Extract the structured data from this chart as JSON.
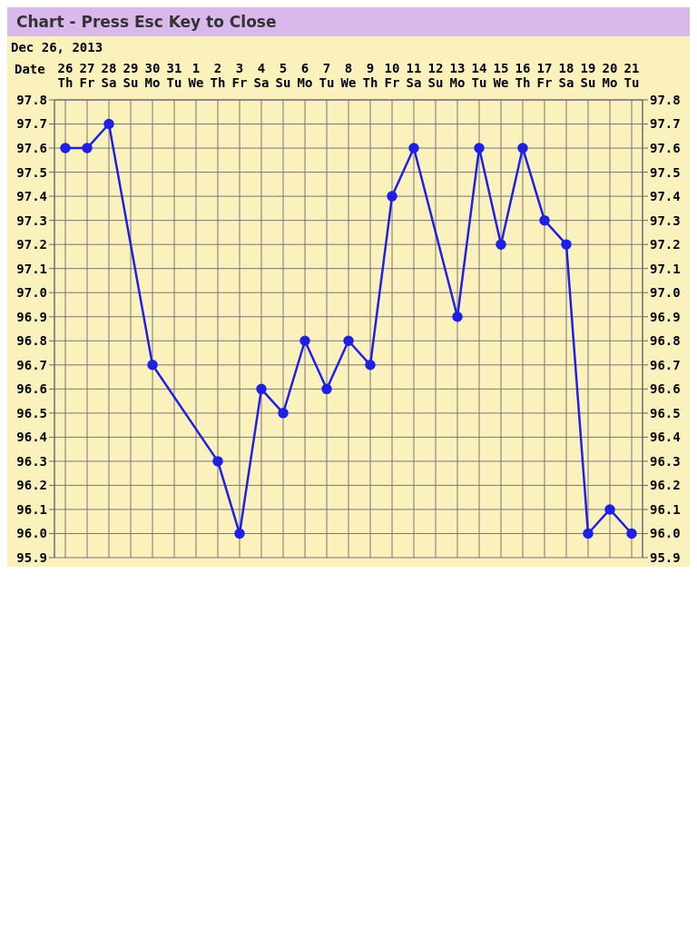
{
  "chart_data": {
    "type": "line",
    "title": "Chart - Press Esc Key to Close",
    "subtitle": "Dec 26, 2013",
    "xlabel": "Date",
    "categories": [
      "26 Th",
      "27 Fr",
      "28 Sa",
      "29 Su",
      "30 Mo",
      "31 Tu",
      "1 We",
      "2 Th",
      "3 Fr",
      "4 Sa",
      "5 Su",
      "6 Mo",
      "7 Tu",
      "8 We",
      "9 Th",
      "10 Fr",
      "11 Sa",
      "12 Su",
      "13 Mo",
      "14 Tu",
      "15 We",
      "16 Th",
      "17 Fr",
      "18 Sa",
      "19 Su",
      "20 Mo",
      "21 Tu"
    ],
    "series": [
      {
        "color": "#1f1fe6",
        "values": [
          97.6,
          97.6,
          97.7,
          null,
          96.7,
          null,
          null,
          96.3,
          96.0,
          96.6,
          96.5,
          96.8,
          96.6,
          96.8,
          96.7,
          97.4,
          97.6,
          null,
          96.9,
          97.6,
          97.2,
          97.6,
          97.3,
          97.2,
          96.0,
          96.1,
          96.0
        ]
      }
    ],
    "ylim": [
      95.9,
      97.8
    ],
    "yticks": [
      95.9,
      {
        "value": 96,
        "label": "96.0"
      },
      96.1,
      96.2,
      96.3,
      96.4,
      96.5,
      96.6,
      96.7,
      96.8,
      96.9,
      {
        "value": 97,
        "label": "97.0"
      },
      97.1,
      97.2,
      97.3,
      97.4,
      97.5,
      97.6,
      97.7,
      97.8
    ],
    "y2lim": [
      95.9,
      97.8
    ],
    "y2ticks": [
      95.9,
      {
        "value": 96,
        "label": "96.0"
      },
      96.1,
      96.2,
      96.3,
      96.4,
      96.5,
      96.6,
      96.7,
      96.8,
      96.9,
      {
        "value": 97,
        "label": "97.0"
      },
      97.1,
      97.2,
      97.3,
      97.4,
      97.5,
      97.6,
      97.7,
      97.8
    ],
    "grid": true,
    "marker": "circle",
    "line_style": "solid"
  }
}
